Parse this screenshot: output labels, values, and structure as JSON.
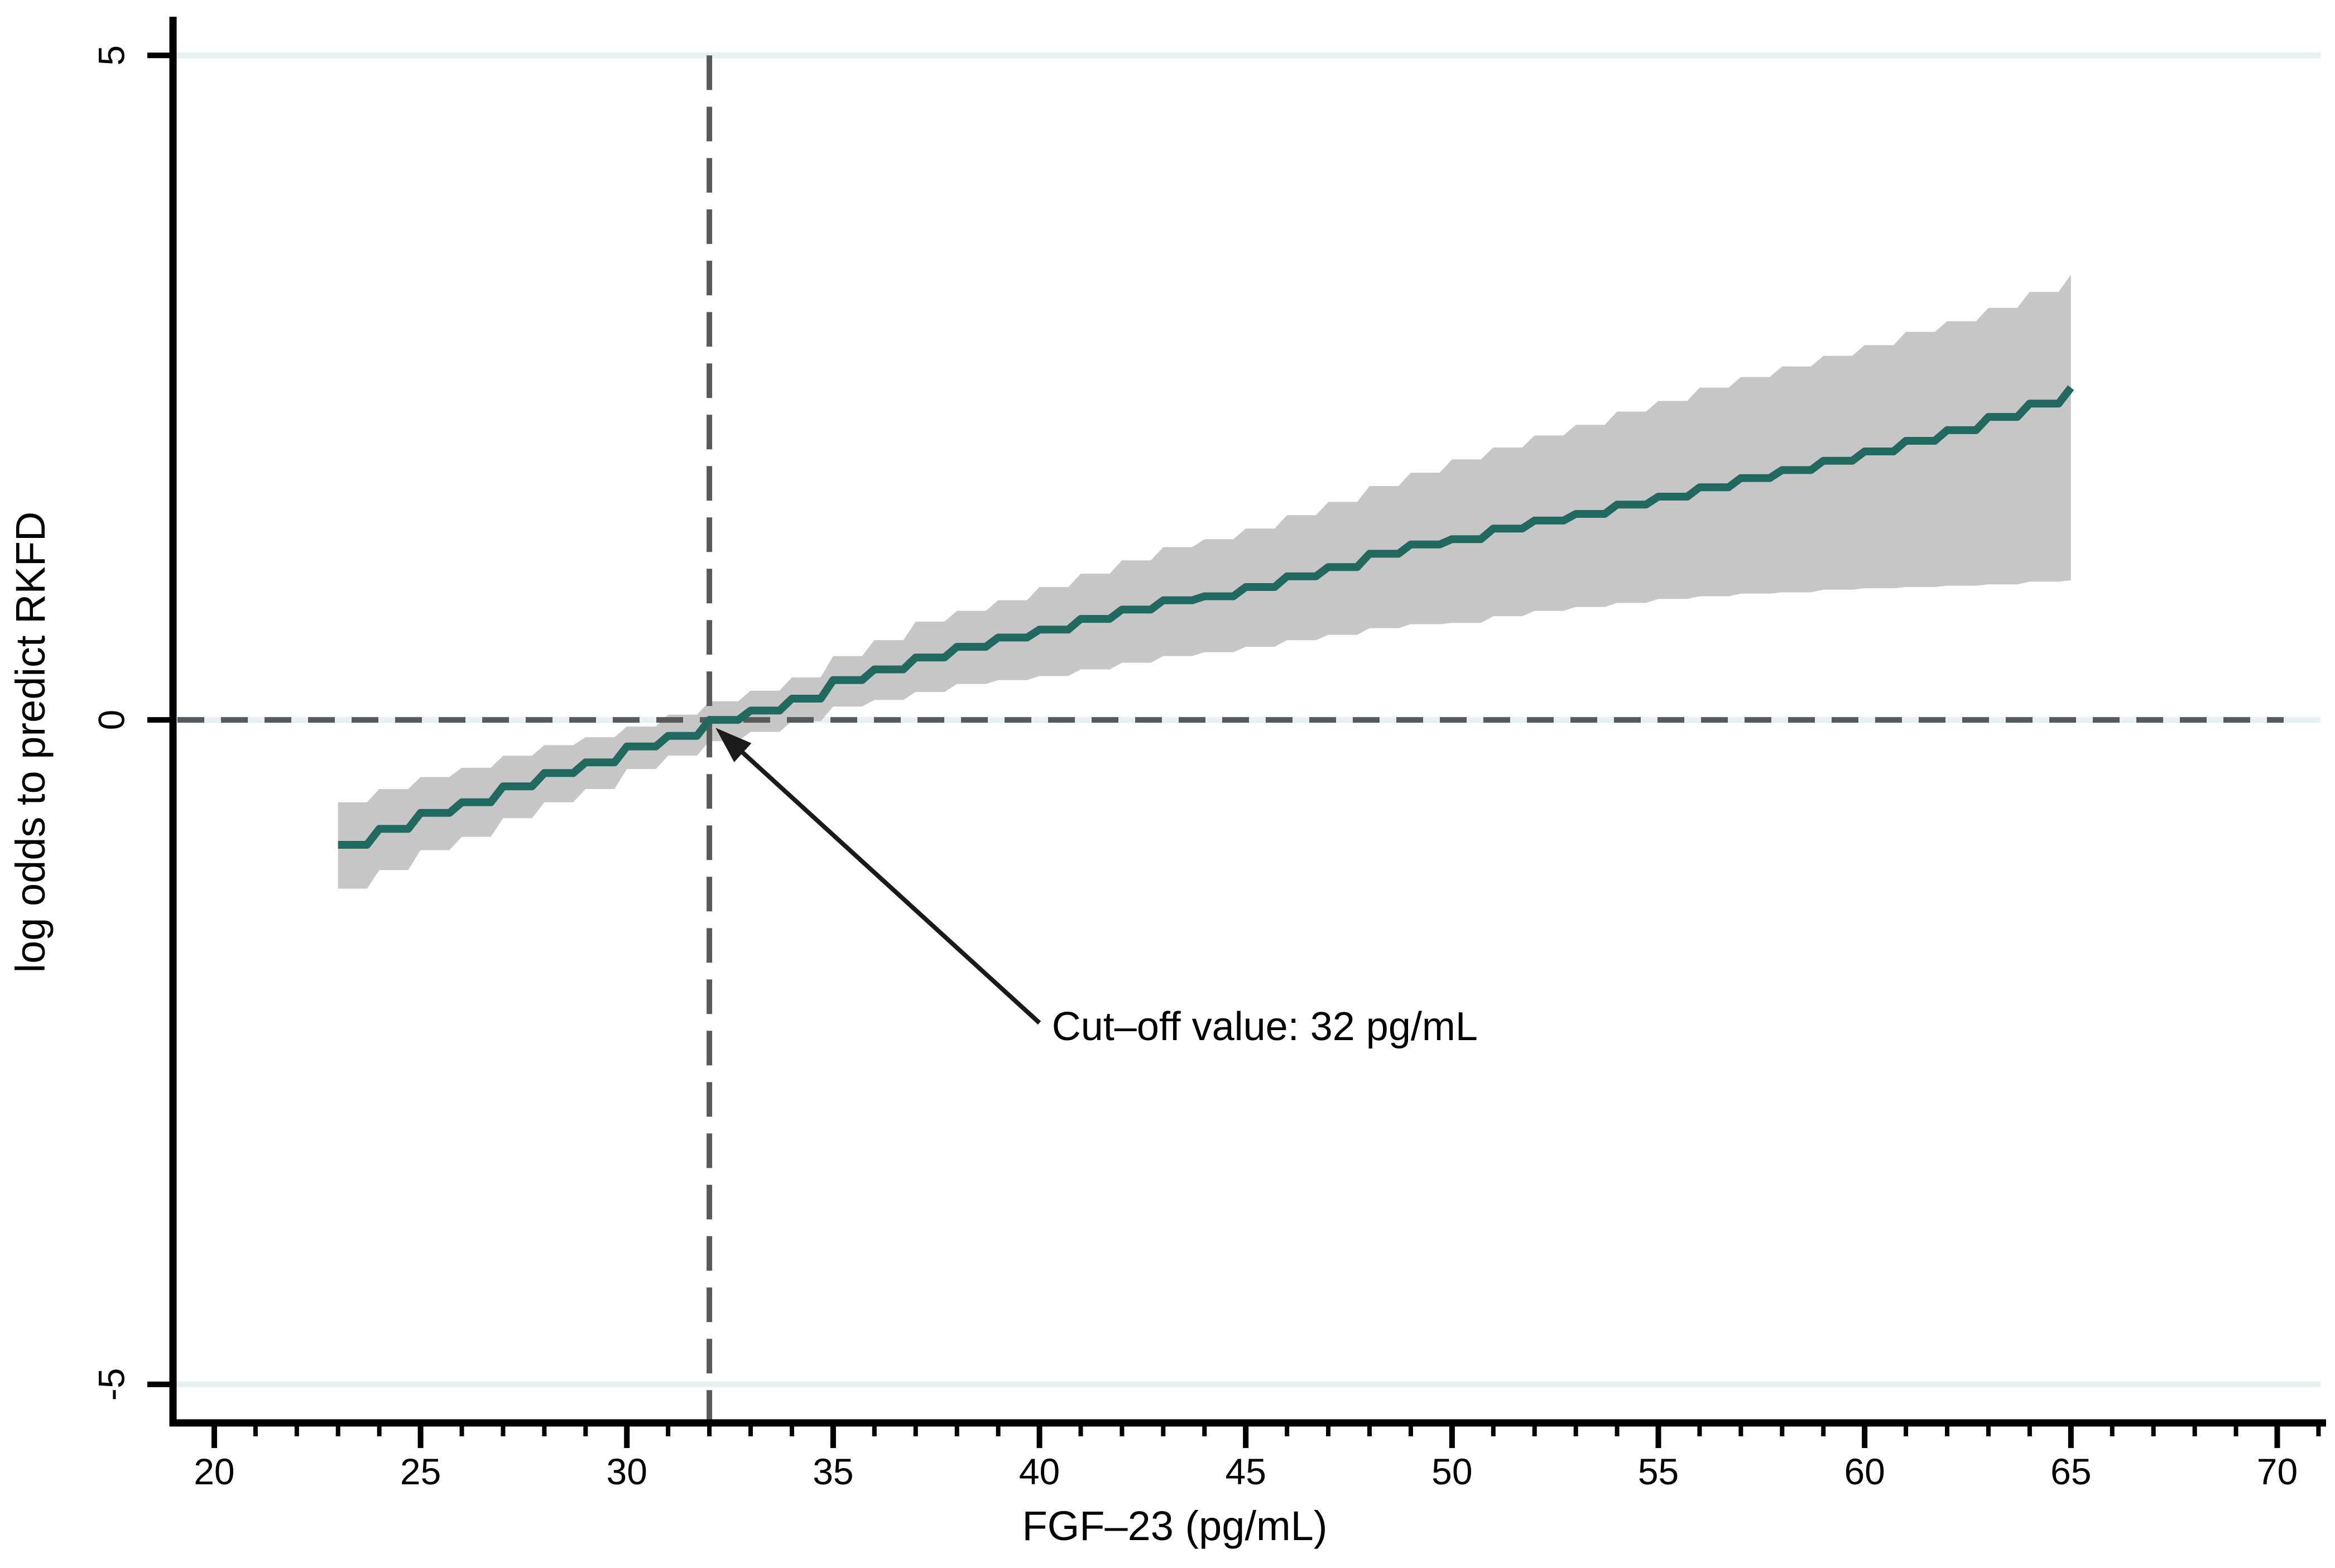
{
  "figure": {
    "background": "#ffffff"
  },
  "chart_data": {
    "type": "line",
    "subtype": "step-with-confidence-band",
    "title": "",
    "xlabel": "FGF–23 (pg/mL)",
    "ylabel": "log odds to predict RKFD",
    "xlim": [
      19.0,
      71.4
    ],
    "ylim": [
      -5.29,
      5.27
    ],
    "x_major_ticks": [
      20,
      25,
      30,
      35,
      40,
      45,
      50,
      55,
      60,
      65,
      70
    ],
    "x_minor_tick_step": 1,
    "x_minor_tick_range": [
      21,
      71
    ],
    "y_ticks": [
      -5,
      0,
      5
    ],
    "y_tick_labels": [
      "-5",
      "0",
      "5"
    ],
    "x_tick_labels": [
      "20",
      "25",
      "30",
      "35",
      "40",
      "45",
      "50",
      "55",
      "60",
      "65",
      "70"
    ],
    "gridlines_y": [
      5,
      0,
      -5
    ],
    "grid_on": true,
    "legend_position": "none",
    "x": [
      23,
      24,
      25,
      26,
      27,
      28,
      29,
      30,
      31,
      32,
      33,
      34,
      35,
      36,
      37,
      38,
      39,
      40,
      41,
      42,
      43,
      44,
      45,
      46,
      47,
      48,
      49,
      50,
      51,
      52,
      53,
      54,
      55,
      56,
      57,
      58,
      59,
      60,
      61,
      62,
      63,
      64,
      65
    ],
    "series": [
      {
        "name": "log odds (step estimate)",
        "values": [
          -0.94,
          -0.82,
          -0.7,
          -0.62,
          -0.5,
          -0.4,
          -0.32,
          -0.2,
          -0.12,
          0.0,
          0.07,
          0.16,
          0.3,
          0.38,
          0.47,
          0.55,
          0.62,
          0.68,
          0.76,
          0.83,
          0.9,
          0.93,
          1.0,
          1.08,
          1.15,
          1.25,
          1.32,
          1.36,
          1.44,
          1.5,
          1.55,
          1.62,
          1.68,
          1.75,
          1.82,
          1.88,
          1.95,
          2.02,
          2.1,
          2.18,
          2.28,
          2.38,
          2.5
        ]
      },
      {
        "name": "95% CI upper",
        "values": [
          -0.62,
          -0.52,
          -0.43,
          -0.36,
          -0.27,
          -0.19,
          -0.13,
          -0.05,
          0.04,
          0.14,
          0.22,
          0.32,
          0.48,
          0.6,
          0.74,
          0.82,
          0.9,
          1.0,
          1.1,
          1.2,
          1.3,
          1.36,
          1.44,
          1.54,
          1.64,
          1.76,
          1.86,
          1.96,
          2.05,
          2.14,
          2.22,
          2.32,
          2.4,
          2.5,
          2.58,
          2.66,
          2.74,
          2.82,
          2.92,
          3.0,
          3.1,
          3.22,
          3.35
        ]
      },
      {
        "name": "95% CI lower",
        "values": [
          -1.27,
          -1.13,
          -0.98,
          -0.88,
          -0.74,
          -0.62,
          -0.52,
          -0.37,
          -0.27,
          -0.16,
          -0.09,
          -0.01,
          0.1,
          0.15,
          0.21,
          0.27,
          0.3,
          0.33,
          0.38,
          0.43,
          0.48,
          0.51,
          0.55,
          0.6,
          0.64,
          0.69,
          0.72,
          0.73,
          0.78,
          0.82,
          0.85,
          0.88,
          0.91,
          0.93,
          0.95,
          0.96,
          0.98,
          0.99,
          1.0,
          1.01,
          1.02,
          1.04,
          1.05
        ]
      }
    ],
    "reference_lines": {
      "horizontal_y": 0,
      "vertical_x": 32
    },
    "annotation": {
      "text": "Cut–off value: 32 pg/mL",
      "text_x": 40.3,
      "text_y": -2.33,
      "arrow_tail_x": 40.0,
      "arrow_tail_y": -2.28,
      "arrow_tip_x": 32.15,
      "arrow_tip_y": -0.06
    },
    "colors": {
      "line": "#21695e",
      "band": "#c6c6c6",
      "dashed": "#58595b",
      "gridline": "#e8f1f2",
      "axis": "#000000",
      "arrow": "#1a1a1a",
      "background": "#ffffff"
    }
  }
}
